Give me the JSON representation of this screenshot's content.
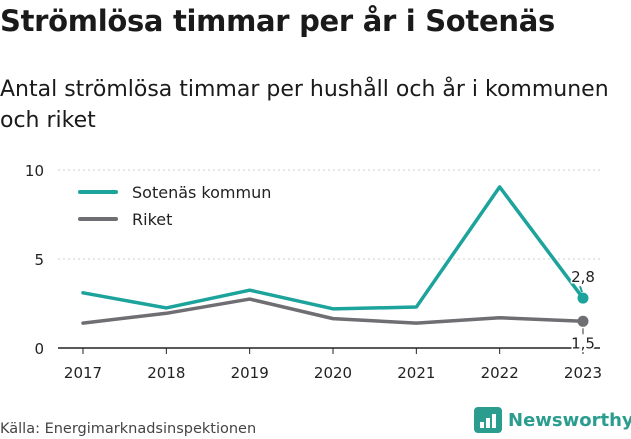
{
  "header": {
    "title": "Strömlösa timmar per år i Sotenäs",
    "subtitle": "Antal strömlösa timmar per hushåll och år i kommunen och riket"
  },
  "footer": {
    "source": "Källa: Energimarknadsinspektionen",
    "brand": "Newsworthy"
  },
  "colors": {
    "accent": "#1ba39c",
    "secondary": "#6e6e73",
    "brand": "#2a9d8f"
  },
  "chart_data": {
    "type": "line",
    "x": [
      "2017",
      "2018",
      "2019",
      "2020",
      "2021",
      "2022",
      "2023"
    ],
    "series": [
      {
        "name": "Sotenäs kommun",
        "color": "#1ba39c",
        "values": [
          3.1,
          2.25,
          3.25,
          2.2,
          2.3,
          9.05,
          2.8
        ],
        "end_label": "2,8"
      },
      {
        "name": "Riket",
        "color": "#6e6e73",
        "values": [
          1.4,
          1.95,
          2.75,
          1.65,
          1.4,
          1.7,
          1.5
        ],
        "end_label": "1,5"
      }
    ],
    "yticks": [
      "0",
      "5",
      "10"
    ],
    "ylim": [
      0,
      10
    ],
    "grid": "horizontal",
    "legend": "top-left"
  }
}
